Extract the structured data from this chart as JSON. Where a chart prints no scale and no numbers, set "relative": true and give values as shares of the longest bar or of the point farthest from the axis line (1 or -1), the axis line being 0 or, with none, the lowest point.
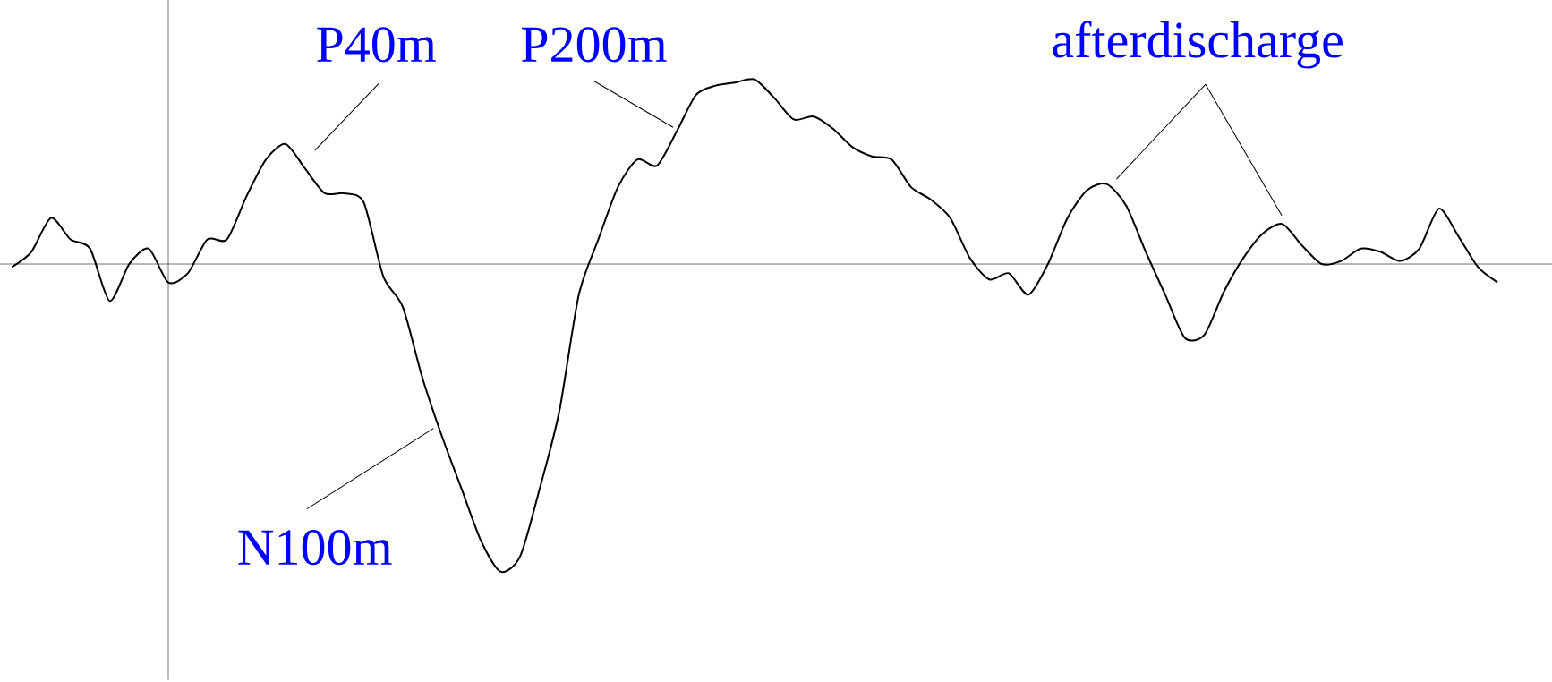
{
  "chart_data": {
    "type": "line",
    "relative": true,
    "color": "#000000",
    "categories": [
      null,
      null,
      null,
      null,
      null,
      null,
      null,
      null,
      null,
      null,
      null,
      null,
      null,
      null,
      null,
      null,
      null,
      null,
      null,
      null,
      null,
      null,
      null,
      null,
      null,
      null,
      null,
      null,
      null,
      null,
      null,
      null,
      null,
      null,
      null,
      null,
      null,
      null,
      null,
      null,
      null,
      null,
      null,
      null,
      null,
      null,
      null,
      null,
      null,
      null,
      null,
      null,
      null,
      null,
      null,
      null,
      null,
      null,
      null,
      null,
      null,
      null,
      null,
      null,
      null,
      null,
      null,
      null,
      null,
      null,
      null,
      null,
      null,
      null,
      null,
      null,
      null
    ],
    "values": [
      -0.01,
      0.04,
      0.15,
      0.08,
      0.05,
      -0.12,
      0,
      0.05,
      -0.06,
      -0.03,
      0.08,
      0.08,
      0.22,
      0.34,
      0.39,
      0.31,
      0.23,
      0.23,
      0.2,
      -0.04,
      -0.14,
      -0.37,
      -0.56,
      -0.73,
      -0.9,
      -1,
      -0.95,
      -0.73,
      -0.48,
      -0.1,
      0.08,
      0.25,
      0.34,
      0.32,
      0.43,
      0.55,
      0.58,
      0.59,
      0.6,
      0.54,
      0.47,
      0.48,
      0.44,
      0.38,
      0.35,
      0.34,
      0.25,
      0.21,
      0.15,
      0.02,
      -0.05,
      -0.03,
      -0.1,
      0,
      0.15,
      0.24,
      0.26,
      0.19,
      0.04,
      -0.1,
      -0.24,
      -0.23,
      -0.09,
      0.02,
      0.1,
      0.13,
      0.06,
      0,
      0.01,
      0.05,
      0.04,
      0.01,
      0.05,
      0.18,
      0.09,
      -0.01,
      -0.06
    ],
    "annotations": [
      "P40m",
      "P200m",
      "N100m",
      "afterdischarge"
    ]
  }
}
